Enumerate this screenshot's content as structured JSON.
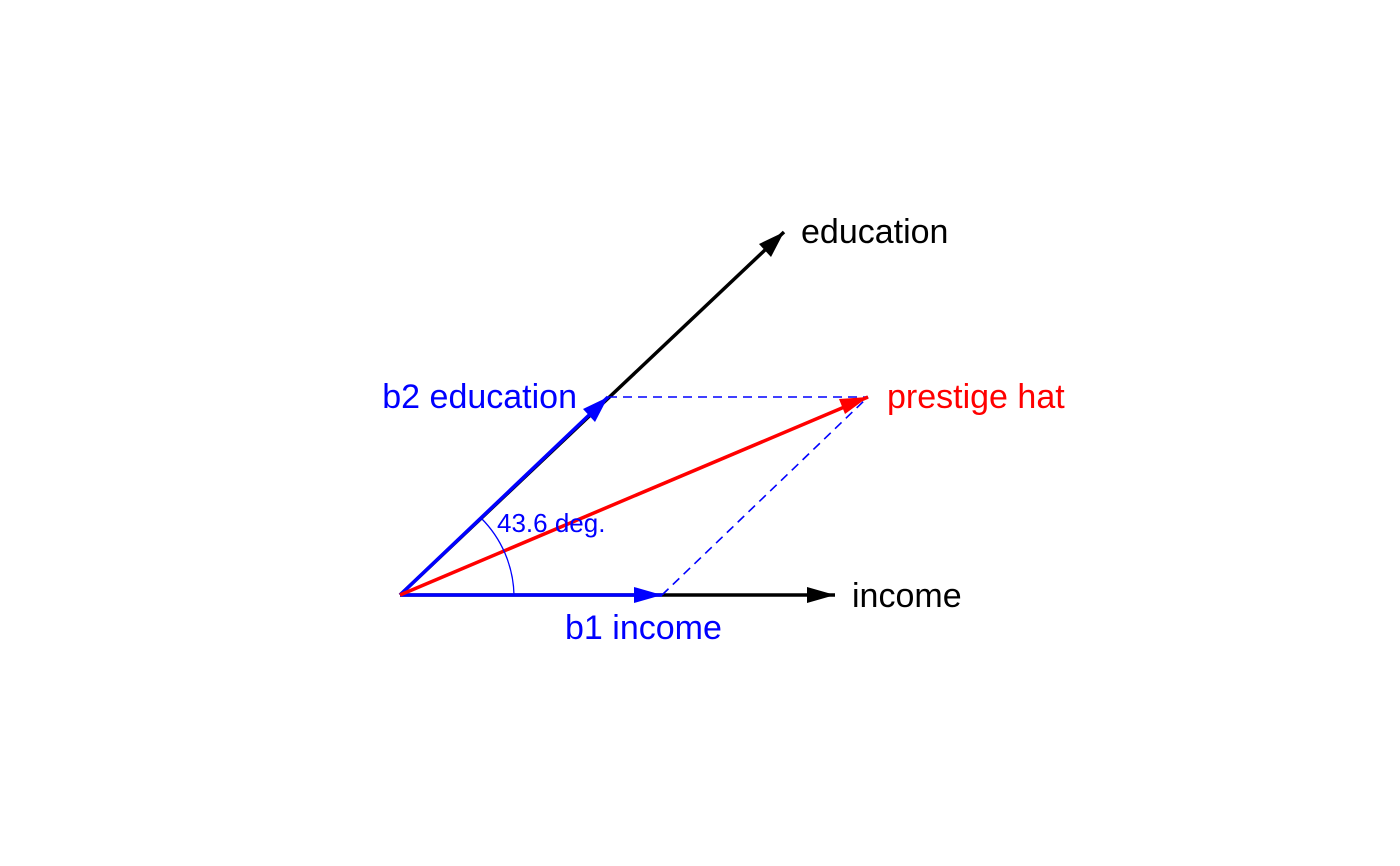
{
  "diagram": {
    "labels": {
      "education": "education",
      "income": "income",
      "prestige_hat": "prestige hat",
      "b2_education": "b2 education",
      "b1_income": "b1 income",
      "angle": "43.6 deg."
    },
    "angle_degrees": 43.6,
    "colors": {
      "basis": "#000000",
      "components": "#0000ff",
      "fitted": "#ff0000",
      "background": "#ffffff"
    }
  }
}
